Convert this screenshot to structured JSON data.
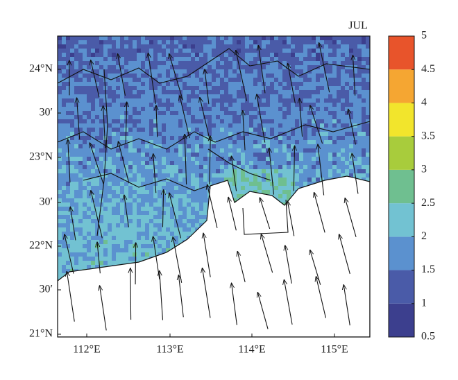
{
  "title": "JUL",
  "lat_labels": [
    "24°N",
    "30′",
    "23°N",
    "30′",
    "22°N",
    "30′",
    "21°N"
  ],
  "lon_labels": [
    "112°E",
    "113°E",
    "114°E",
    "115°E"
  ],
  "colorbar": {
    "range": [
      0.5,
      5
    ],
    "ticks": [
      0.5,
      1,
      1.5,
      2,
      2.5,
      3,
      3.5,
      4,
      4.5,
      5
    ],
    "colors": [
      "#3c3f8e",
      "#4a5ba8",
      "#5b91cf",
      "#72c2d2",
      "#6fbf90",
      "#a8cc3c",
      "#f2e52c",
      "#f5a632",
      "#e8542b"
    ]
  }
}
